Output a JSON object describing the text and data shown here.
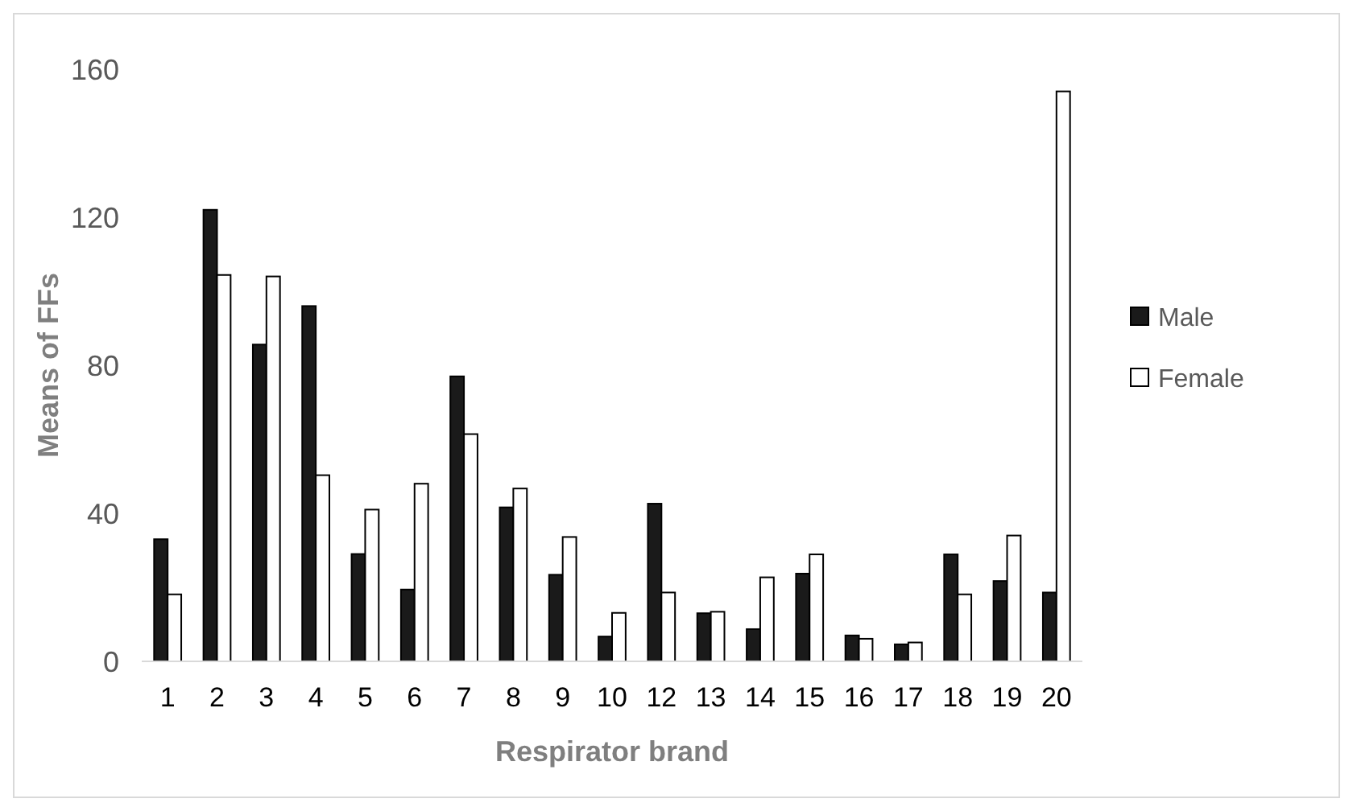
{
  "chart_data": {
    "type": "bar",
    "xlabel": "Respirator brand",
    "ylabel": "Means of FFs",
    "categories": [
      "1",
      "2",
      "3",
      "4",
      "5",
      "6",
      "7",
      "8",
      "9",
      "10",
      "12",
      "13",
      "14",
      "15",
      "16",
      "17",
      "18",
      "19",
      "20"
    ],
    "series": [
      {
        "name": "Male",
        "color": "#1a1a1a",
        "values": [
          33,
          122,
          85.6,
          96,
          29,
          19.4,
          77,
          41.6,
          23.4,
          6.7,
          42.6,
          13,
          8.7,
          23.7,
          7,
          4.6,
          28.9,
          21.7,
          18.6
        ]
      },
      {
        "name": "Female",
        "color": "#ffffff",
        "values": [
          18.1,
          104.4,
          104,
          50.3,
          41,
          48,
          61.4,
          46.7,
          33.6,
          13.1,
          18.6,
          13.4,
          22.7,
          28.9,
          6.1,
          5.1,
          18.1,
          34,
          154
        ]
      }
    ],
    "ylim": [
      0,
      160
    ],
    "yticks": [
      0,
      40,
      80,
      120,
      160
    ],
    "grid": false,
    "legend": "right"
  }
}
